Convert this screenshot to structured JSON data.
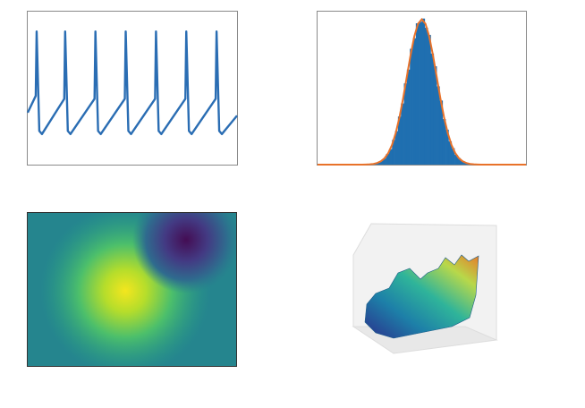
{
  "chart_data": [
    {
      "type": "line",
      "color": "#2a6db3",
      "xlim": [
        0,
        235
      ],
      "ylim": [
        0,
        100
      ],
      "x": [
        0,
        9,
        10,
        13,
        16,
        41,
        42,
        45,
        48,
        75,
        76,
        79,
        82,
        109,
        110,
        113,
        116,
        143,
        144,
        147,
        150,
        177,
        178,
        181,
        184,
        211,
        212,
        215,
        218,
        235
      ],
      "values": [
        34,
        45,
        87,
        22,
        20,
        43,
        87,
        22,
        20,
        43,
        87,
        22,
        20,
        43,
        87,
        22,
        20,
        43,
        87,
        22,
        20,
        43,
        87,
        22,
        20,
        43,
        87,
        22,
        20,
        32
      ]
    },
    {
      "type": "histogram",
      "color": "#1f6fb0",
      "xlim": [
        -7,
        7
      ],
      "ylim": [
        0,
        0.42
      ],
      "bins": [
        -4,
        -3.8,
        -3.6,
        -3.4,
        -3.2,
        -3,
        -2.8,
        -2.6,
        -2.4,
        -2.2,
        -2,
        -1.8,
        -1.6,
        -1.4,
        -1.2,
        -1,
        -0.8,
        -0.6,
        -0.4,
        -0.2,
        0,
        0.2,
        0.4,
        0.6,
        0.8,
        1,
        1.2,
        1.4,
        1.6,
        1.8,
        2,
        2.2,
        2.4,
        2.6,
        2.8,
        3,
        3.2,
        3.4,
        3.6,
        3.8,
        4
      ],
      "values": [
        0.0003,
        0.0005,
        0.001,
        0.0015,
        0.0035,
        0.0055,
        0.011,
        0.017,
        0.0295,
        0.0425,
        0.068,
        0.092,
        0.132,
        0.168,
        0.223,
        0.261,
        0.318,
        0.347,
        0.388,
        0.392,
        0.401,
        0.376,
        0.356,
        0.305,
        0.27,
        0.215,
        0.176,
        0.125,
        0.096,
        0.064,
        0.045,
        0.027,
        0.018,
        0.01,
        0.0062,
        0.003,
        0.0018,
        0.0008,
        0.0004,
        0.0002
      ],
      "fit": {
        "color": "#e8722a",
        "x": [
          -7,
          -4,
          -3.75,
          -3.5,
          -3.25,
          -3,
          -2.75,
          -2.5,
          -2.25,
          -2,
          -1.75,
          -1.5,
          -1.25,
          -1,
          -0.75,
          -0.5,
          -0.25,
          0,
          0.25,
          0.5,
          0.75,
          1,
          1.25,
          1.5,
          1.75,
          2,
          2.25,
          2.5,
          2.75,
          3,
          3.25,
          3.5,
          3.75,
          4,
          7
        ],
        "values": [
          0,
          0.0001,
          0.0004,
          0.0009,
          0.002,
          0.0044,
          0.0091,
          0.0175,
          0.0317,
          0.054,
          0.0863,
          0.1295,
          0.1826,
          0.242,
          0.3011,
          0.3521,
          0.3867,
          0.3989,
          0.3867,
          0.3521,
          0.3011,
          0.242,
          0.1826,
          0.1295,
          0.0863,
          0.054,
          0.0317,
          0.0175,
          0.0091,
          0.0044,
          0.002,
          0.0009,
          0.0004,
          0.0001,
          0
        ]
      }
    }
  ]
}
